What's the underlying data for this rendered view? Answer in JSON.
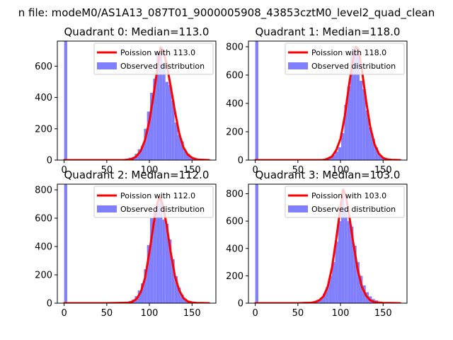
{
  "figure_title": "n file: modeM0/AS1A13_087T01_9000005908_43853cztM0_level2_quad_clean",
  "colors": {
    "poisson_line": "#ff0000",
    "histogram": "#8080ff",
    "axes": "#000000",
    "background": "#ffffff"
  },
  "chart_data": [
    {
      "type": "bar",
      "title": "Quadrant 0: Median=113.0",
      "xlim": [
        -8,
        178
      ],
      "ylim": [
        0,
        760
      ],
      "x_ticks": [
        0,
        50,
        100,
        150
      ],
      "y_ticks": [
        0,
        200,
        400,
        600
      ],
      "legend": [
        "Poission with 113.0",
        "Observed distribution"
      ],
      "legend_position": "top-right",
      "bin_width": 3.6,
      "histogram": {
        "name": "Observed distribution",
        "x": [
          0.0,
          3.6,
          7.2,
          10.8,
          14.4,
          18.0,
          21.6,
          25.2,
          28.8,
          32.4,
          36.0,
          39.6,
          43.2,
          46.8,
          50.4,
          54.0,
          57.6,
          61.2,
          64.8,
          68.4,
          72.0,
          75.6,
          79.2,
          82.8,
          86.4,
          90.0,
          93.6,
          97.2,
          100.8,
          104.4,
          108.0,
          111.6,
          115.2,
          118.8,
          122.4,
          126.0,
          129.6,
          133.2,
          136.8,
          140.4,
          144.0,
          147.6,
          151.2,
          154.8,
          158.4,
          162.0,
          165.6
        ],
        "y": [
          760,
          0,
          0,
          0,
          0,
          0,
          0,
          0,
          0,
          0,
          0,
          0,
          0,
          0,
          0,
          0,
          0,
          0,
          0,
          5,
          10,
          15,
          20,
          40,
          70,
          90,
          200,
          310,
          430,
          520,
          690,
          700,
          620,
          500,
          480,
          380,
          240,
          160,
          120,
          60,
          40,
          20,
          10,
          0,
          0,
          0,
          0
        ]
      },
      "poisson": {
        "name": "Poission with 113.0",
        "x": [
          0,
          50,
          70,
          75,
          80,
          85,
          90,
          95,
          100,
          105,
          110,
          113,
          116,
          120,
          125,
          130,
          135,
          140,
          145,
          150,
          155,
          160,
          170
        ],
        "y": [
          0,
          0,
          0,
          3,
          8,
          25,
          60,
          130,
          250,
          420,
          610,
          720,
          700,
          620,
          470,
          310,
          170,
          80,
          35,
          15,
          5,
          2,
          0
        ]
      }
    },
    {
      "type": "bar",
      "title": "Quadrant 1: Median=118.0",
      "xlim": [
        -8,
        178
      ],
      "ylim": [
        0,
        840
      ],
      "x_ticks": [
        0,
        50,
        100,
        150
      ],
      "y_ticks": [
        0,
        200,
        400,
        600,
        800
      ],
      "legend": [
        "Poission with 118.0",
        "Observed distribution"
      ],
      "legend_position": "top-right",
      "bin_width": 3.6,
      "histogram": {
        "name": "Observed distribution",
        "x": [
          0.0,
          3.6,
          7.2,
          10.8,
          14.4,
          18.0,
          21.6,
          25.2,
          28.8,
          32.4,
          36.0,
          39.6,
          43.2,
          46.8,
          50.4,
          54.0,
          57.6,
          61.2,
          64.8,
          68.4,
          72.0,
          75.6,
          79.2,
          82.8,
          86.4,
          90.0,
          93.6,
          97.2,
          100.8,
          104.4,
          108.0,
          111.6,
          115.2,
          118.8,
          122.4,
          126.0,
          129.6,
          133.2,
          136.8,
          140.4,
          144.0,
          147.6,
          151.2,
          154.8,
          158.4,
          162.0,
          165.6
        ],
        "y": [
          840,
          0,
          0,
          0,
          0,
          0,
          0,
          0,
          0,
          0,
          0,
          0,
          0,
          0,
          0,
          0,
          0,
          0,
          0,
          0,
          5,
          8,
          10,
          15,
          25,
          35,
          60,
          90,
          190,
          390,
          520,
          760,
          800,
          770,
          560,
          500,
          350,
          230,
          150,
          90,
          40,
          20,
          10,
          5,
          0,
          0,
          0
        ]
      },
      "poisson": {
        "name": "Poission with 118.0",
        "x": [
          0,
          50,
          80,
          85,
          90,
          95,
          100,
          105,
          110,
          115,
          118,
          121,
          125,
          130,
          135,
          140,
          145,
          150,
          155,
          160,
          170
        ],
        "y": [
          0,
          0,
          0,
          10,
          25,
          70,
          150,
          310,
          530,
          720,
          800,
          780,
          640,
          420,
          230,
          110,
          45,
          15,
          5,
          2,
          0
        ]
      }
    },
    {
      "type": "bar",
      "title": "Quadrant 2: Median=112.0",
      "xlim": [
        -8,
        178
      ],
      "ylim": [
        0,
        840
      ],
      "x_ticks": [
        0,
        50,
        100,
        150
      ],
      "y_ticks": [
        0,
        200,
        400,
        600,
        800
      ],
      "legend": [
        "Poission with 112.0",
        "Observed distribution"
      ],
      "legend_position": "top-right",
      "bin_width": 3.6,
      "histogram": {
        "name": "Observed distribution",
        "x": [
          0.0,
          3.6,
          7.2,
          10.8,
          14.4,
          18.0,
          21.6,
          25.2,
          28.8,
          32.4,
          36.0,
          39.6,
          43.2,
          46.8,
          50.4,
          54.0,
          57.6,
          61.2,
          64.8,
          68.4,
          72.0,
          75.6,
          79.2,
          82.8,
          86.4,
          90.0,
          93.6,
          97.2,
          100.8,
          104.4,
          108.0,
          111.6,
          115.2,
          118.8,
          122.4,
          126.0,
          129.6,
          133.2,
          136.8,
          140.4,
          144.0,
          147.6,
          151.2,
          154.8,
          158.4,
          162.0,
          165.6
        ],
        "y": [
          840,
          0,
          0,
          0,
          0,
          0,
          0,
          0,
          0,
          0,
          0,
          0,
          0,
          0,
          0,
          0,
          0,
          0,
          0,
          5,
          10,
          15,
          25,
          50,
          90,
          140,
          240,
          410,
          600,
          650,
          700,
          730,
          590,
          560,
          450,
          310,
          190,
          110,
          60,
          30,
          15,
          8,
          5,
          0,
          0,
          0,
          0
        ]
      },
      "poisson": {
        "name": "Poission with 112.0",
        "x": [
          0,
          50,
          75,
          80,
          85,
          90,
          95,
          100,
          105,
          110,
          112,
          115,
          120,
          125,
          130,
          135,
          140,
          145,
          150,
          155,
          170
        ],
        "y": [
          0,
          0,
          3,
          10,
          30,
          80,
          180,
          360,
          560,
          720,
          750,
          710,
          560,
          360,
          190,
          90,
          35,
          12,
          5,
          2,
          0
        ]
      }
    },
    {
      "type": "bar",
      "title": "Quadrant 3: Median=103.0",
      "xlim": [
        -8,
        178
      ],
      "ylim": [
        0,
        870
      ],
      "x_ticks": [
        0,
        50,
        100,
        150
      ],
      "y_ticks": [
        0,
        200,
        400,
        600,
        800
      ],
      "legend": [
        "Poission with 103.0",
        "Observed distribution"
      ],
      "legend_position": "top-right",
      "bin_width": 3.6,
      "histogram": {
        "name": "Observed distribution",
        "x": [
          0.0,
          3.6,
          7.2,
          10.8,
          14.4,
          18.0,
          21.6,
          25.2,
          28.8,
          32.4,
          36.0,
          39.6,
          43.2,
          46.8,
          50.4,
          54.0,
          57.6,
          61.2,
          64.8,
          68.4,
          72.0,
          75.6,
          79.2,
          82.8,
          86.4,
          90.0,
          93.6,
          97.2,
          100.8,
          104.4,
          108.0,
          111.6,
          115.2,
          118.8,
          122.4,
          126.0,
          129.6,
          133.2,
          136.8,
          140.4,
          144.0,
          147.6,
          151.2,
          154.8,
          158.4,
          162.0,
          165.6
        ],
        "y": [
          870,
          0,
          0,
          0,
          0,
          0,
          0,
          0,
          0,
          0,
          0,
          0,
          0,
          0,
          0,
          0,
          0,
          5,
          10,
          15,
          25,
          40,
          70,
          120,
          200,
          300,
          450,
          600,
          780,
          700,
          600,
          560,
          420,
          300,
          200,
          130,
          80,
          50,
          30,
          20,
          10,
          5,
          0,
          0,
          0,
          0,
          0
        ]
      },
      "poisson": {
        "name": "Poission with 103.0",
        "x": [
          0,
          50,
          65,
          70,
          75,
          80,
          85,
          90,
          95,
          100,
          103,
          106,
          110,
          115,
          120,
          125,
          130,
          135,
          140,
          150,
          170
        ],
        "y": [
          0,
          0,
          3,
          8,
          20,
          50,
          120,
          260,
          470,
          700,
          830,
          790,
          650,
          440,
          250,
          120,
          55,
          20,
          8,
          2,
          0
        ]
      }
    }
  ]
}
